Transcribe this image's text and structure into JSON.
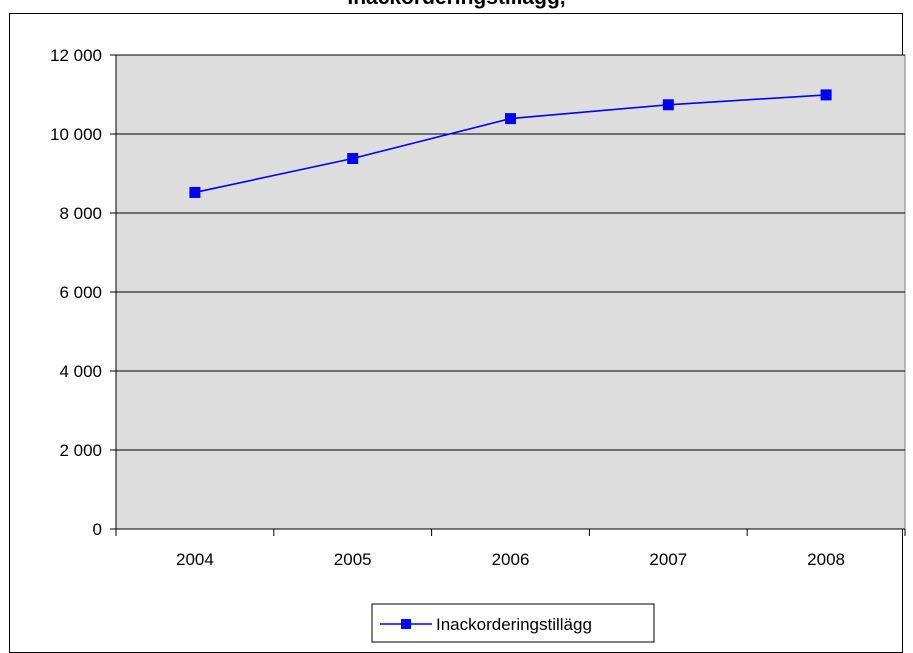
{
  "chart_data": {
    "type": "line",
    "title": "Inackorderingstillägg,",
    "xlabel": "",
    "ylabel": "",
    "categories": [
      "2004",
      "2005",
      "2006",
      "2007",
      "2008"
    ],
    "series": [
      {
        "name": "Inackorderingstillägg",
        "values": [
          8520,
          9380,
          10390,
          10740,
          10990
        ],
        "color": "#0000ff",
        "marker": "square"
      }
    ],
    "ylim": [
      0,
      12000
    ],
    "yticks": [
      0,
      2000,
      4000,
      6000,
      8000,
      10000,
      12000
    ],
    "ytick_labels": [
      "0",
      "2 000",
      "4 000",
      "6 000",
      "8 000",
      "10 000",
      "12 000"
    ],
    "grid": "horizontal",
    "plot_background": "#dddddd",
    "legend_position": "bottom"
  }
}
